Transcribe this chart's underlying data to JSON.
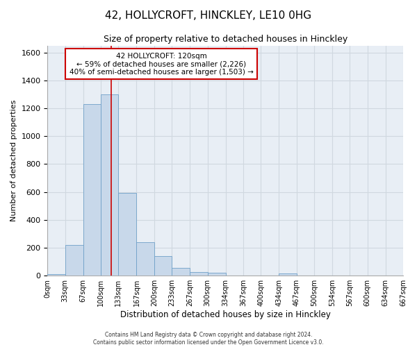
{
  "title_line1": "42, HOLLYCROFT, HINCKLEY, LE10 0HG",
  "title_line2": "Size of property relative to detached houses in Hinckley",
  "xlabel": "Distribution of detached houses by size in Hinckley",
  "ylabel": "Number of detached properties",
  "annotation_line1": "42 HOLLYCROFT: 120sqm",
  "annotation_line2": "← 59% of detached houses are smaller (2,226)",
  "annotation_line3": "40% of semi-detached houses are larger (1,503) →",
  "footnote1": "Contains HM Land Registry data © Crown copyright and database right 2024.",
  "footnote2": "Contains public sector information licensed under the Open Government Licence v3.0.",
  "bar_edges": [
    0,
    33,
    67,
    100,
    133,
    167,
    200,
    233,
    267,
    300,
    334,
    367,
    400,
    434,
    467,
    500,
    534,
    567,
    600,
    634,
    667
  ],
  "bar_heights": [
    10,
    220,
    1230,
    1300,
    595,
    240,
    140,
    55,
    25,
    20,
    0,
    0,
    0,
    15,
    0,
    0,
    0,
    0,
    0,
    0
  ],
  "property_size": 120,
  "bar_color": "#c8d8ea",
  "bar_edge_color": "#6fa0c8",
  "vline_color": "#cc0000",
  "annotation_box_edge": "#cc0000",
  "background_color": "#ffffff",
  "grid_color": "#d0d8e0",
  "plot_bg_color": "#e8eef5",
  "ylim": [
    0,
    1650
  ],
  "yticks": [
    0,
    200,
    400,
    600,
    800,
    1000,
    1200,
    1400,
    1600
  ],
  "xtick_labels": [
    "0sqm",
    "33sqm",
    "67sqm",
    "100sqm",
    "133sqm",
    "167sqm",
    "200sqm",
    "233sqm",
    "267sqm",
    "300sqm",
    "334sqm",
    "367sqm",
    "400sqm",
    "434sqm",
    "467sqm",
    "500sqm",
    "534sqm",
    "567sqm",
    "600sqm",
    "634sqm",
    "667sqm"
  ]
}
